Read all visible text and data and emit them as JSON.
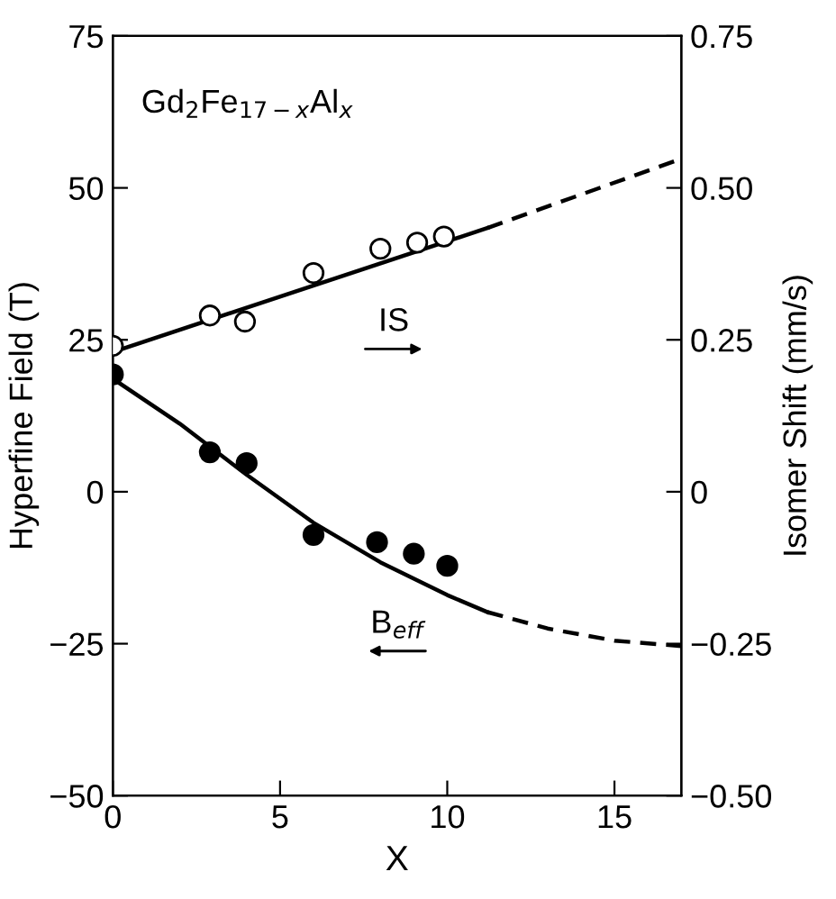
{
  "chart_data": {
    "type": "scatter",
    "title": "Gd$_{2}$Fe$_{17−x}$Al$_{x}$",
    "xlabel": "X",
    "ylabel": "Hyperfine Field (T)",
    "y2label": "Isomer Shift (mm/s)",
    "xlim": [
      0,
      17
    ],
    "xticks": [
      0,
      5,
      10,
      15
    ],
    "ylim": [
      -50,
      75
    ],
    "yticks": [
      {
        "value": -50,
        "label": "−50"
      },
      {
        "value": -25,
        "label": "−25"
      },
      0,
      25,
      50,
      75
    ],
    "y2lim": [
      -0.5,
      0.75
    ],
    "y2ticks": [
      {
        "value": -0.5,
        "label": "−0.50"
      },
      {
        "value": -0.25,
        "label": "−0.25"
      },
      0,
      {
        "value": 0.25,
        "label": "0.25"
      },
      {
        "value": 0.5,
        "label": "0.50"
      },
      {
        "value": 0.75,
        "label": "0.75"
      }
    ],
    "grid": false,
    "legend": false,
    "series": [
      {
        "name": "IS",
        "marker": "circle",
        "axis": "y2",
        "color": "#ffffff",
        "x": [
          0,
          2.9,
          3.95,
          6,
          8,
          9.1,
          9.9
        ],
        "values": [
          0.24,
          0.29,
          0.28,
          0.36,
          0.4,
          0.41,
          0.42
        ]
      },
      {
        "type": "line",
        "axis": "y2",
        "color": "#000000",
        "line_style": "solid",
        "x": [
          0,
          11.2
        ],
        "values": [
          0.23,
          0.434
        ]
      },
      {
        "type": "line",
        "axis": "y2",
        "color": "#000000",
        "line_style": "dashed",
        "x": [
          11.2,
          17
        ],
        "values": [
          0.434,
          0.548
        ]
      },
      {
        "name": "B$_{eff}$",
        "marker": "circle",
        "color": "#000000",
        "x": [
          0,
          2.9,
          4,
          6,
          7.9,
          9,
          10
        ],
        "values": [
          19.3,
          6.5,
          4.7,
          -7.1,
          -8.3,
          -10.2,
          -12.2
        ]
      },
      {
        "type": "line",
        "color": "#000000",
        "line_style": "solid",
        "x": [
          0,
          2,
          4,
          6,
          8,
          10,
          11.2
        ],
        "values": [
          18.6,
          11.2,
          2.8,
          -5.1,
          -11.6,
          -17,
          -19.8
        ]
      },
      {
        "type": "line",
        "color": "#000000",
        "line_style": "dashed",
        "x": [
          11.2,
          13,
          15,
          17
        ],
        "values": [
          -19.8,
          -22.5,
          -24.5,
          -25.4
        ]
      }
    ]
  }
}
